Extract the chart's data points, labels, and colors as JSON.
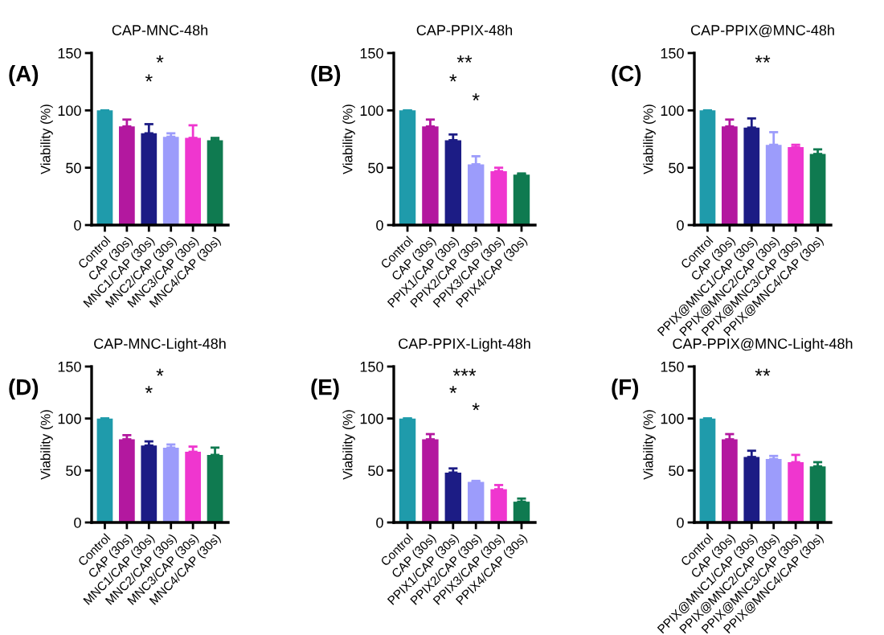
{
  "chart_data": [
    {
      "type": "bar",
      "title": "CAP-MNC-48h",
      "ylabel": "Viability (%)",
      "categories": [
        "Control",
        "CAP (30s)",
        "MNC1/CAP (30s)",
        "MNC2/CAP (30s)",
        "MNC3/CAP (30s)",
        "MNC4/CAP (30s)"
      ],
      "values": [
        100,
        86,
        80,
        77,
        76,
        74
      ],
      "errors": [
        [
          100,
          100
        ],
        [
          86,
          92
        ],
        [
          80,
          88
        ],
        [
          77,
          80
        ],
        [
          76,
          87
        ],
        [
          74,
          76
        ]
      ],
      "colors": [
        "#1f9bab",
        "#b3189f",
        "#1c1c85",
        "#9c9cfb",
        "#ef36cf",
        "#0f7a50"
      ],
      "ylim": [
        0,
        150
      ],
      "yticks": [
        0,
        50,
        100,
        150
      ],
      "annotations": [
        "(A)",
        "*",
        "*"
      ]
    },
    {
      "type": "bar",
      "title": "CAP-PPIX-48h",
      "ylabel": "Viability (%)",
      "categories": [
        "Control",
        "CAP (30s)",
        "PPIX1/CAP (30s)",
        "PPIX2/CAP (30s)",
        "PPIX3/CAP (30s)",
        "PPIX4/CAP (30s)"
      ],
      "values": [
        100,
        86,
        74,
        53,
        47,
        44
      ],
      "errors": [
        [
          100,
          100
        ],
        [
          86,
          92
        ],
        [
          74,
          79
        ],
        [
          53,
          60
        ],
        [
          47,
          50
        ],
        [
          44,
          45
        ]
      ],
      "colors": [
        "#1f9bab",
        "#b3189f",
        "#1c1c85",
        "#9c9cfb",
        "#ef36cf",
        "#0f7a50"
      ],
      "ylim": [
        0,
        150
      ],
      "yticks": [
        0,
        50,
        100,
        150
      ],
      "annotations": [
        "(B)",
        "**",
        "*",
        "*"
      ]
    },
    {
      "type": "bar",
      "title": "CAP-PPIX@MNC-48h",
      "ylabel": "Viability (%)",
      "categories": [
        "Control",
        "CAP (30s)",
        "PPIX@MNC1/CAP (30s)",
        "PPIX@MNC2/CAP (30s)",
        "PPIX@MNC3/CAP (30s)",
        "PPIX@MNC4/CAP (30s)"
      ],
      "values": [
        100,
        86,
        85,
        70,
        68,
        62
      ],
      "errors": [
        [
          100,
          100
        ],
        [
          86,
          92
        ],
        [
          85,
          93
        ],
        [
          70,
          81
        ],
        [
          68,
          70
        ],
        [
          62,
          66
        ]
      ],
      "colors": [
        "#1f9bab",
        "#b3189f",
        "#1c1c85",
        "#9c9cfb",
        "#ef36cf",
        "#0f7a50"
      ],
      "ylim": [
        0,
        150
      ],
      "yticks": [
        0,
        50,
        100,
        150
      ],
      "annotations": [
        "(C)",
        "**"
      ]
    },
    {
      "type": "bar",
      "title": "CAP-MNC-Light-48h",
      "ylabel": "Viability (%)",
      "categories": [
        "Control",
        "CAP (30s)",
        "MNC1/CAP (30s)",
        "MNC2/CAP (30s)",
        "MNC3/CAP (30s)",
        "MNC4/CAP (30s)"
      ],
      "values": [
        100,
        80,
        74,
        72,
        68,
        65
      ],
      "errors": [
        [
          100,
          100
        ],
        [
          80,
          84
        ],
        [
          74,
          78
        ],
        [
          72,
          75
        ],
        [
          68,
          73
        ],
        [
          65,
          72
        ]
      ],
      "colors": [
        "#1f9bab",
        "#b3189f",
        "#1c1c85",
        "#9c9cfb",
        "#ef36cf",
        "#0f7a50"
      ],
      "ylim": [
        0,
        150
      ],
      "yticks": [
        0,
        50,
        100,
        150
      ],
      "annotations": [
        "(D)",
        "*",
        "*"
      ]
    },
    {
      "type": "bar",
      "title": "CAP-PPIX-Light-48h",
      "ylabel": "Viability (%)",
      "categories": [
        "Control",
        "CAP (30s)",
        "PPIX1/CAP (30s)",
        "PPIX2/CAP (30s)",
        "PPIX3/CAP (30s)",
        "PPIX4/CAP (30s)"
      ],
      "values": [
        100,
        80,
        48,
        39,
        32,
        20
      ],
      "errors": [
        [
          100,
          100
        ],
        [
          80,
          85
        ],
        [
          48,
          52
        ],
        [
          39,
          40
        ],
        [
          32,
          36
        ],
        [
          20,
          23
        ]
      ],
      "colors": [
        "#1f9bab",
        "#b3189f",
        "#1c1c85",
        "#9c9cfb",
        "#ef36cf",
        "#0f7a50"
      ],
      "ylim": [
        0,
        150
      ],
      "yticks": [
        0,
        50,
        100,
        150
      ],
      "annotations": [
        "(E)",
        "***",
        "*",
        "*"
      ]
    },
    {
      "type": "bar",
      "title": "CAP-PPIX@MNC-Light-48h",
      "ylabel": "Viability (%)",
      "categories": [
        "Control",
        "CAP (30s)",
        "PPIX@MNC1/CAP (30s)",
        "PPIX@MNC2/CAP (30s)",
        "PPIX@MNC3/CAP (30s)",
        "PPIX@MNC4/CAP (30s)"
      ],
      "values": [
        100,
        80,
        63,
        61,
        58,
        54
      ],
      "errors": [
        [
          100,
          100
        ],
        [
          80,
          85
        ],
        [
          63,
          69
        ],
        [
          61,
          64
        ],
        [
          58,
          65
        ],
        [
          54,
          58
        ]
      ],
      "colors": [
        "#1f9bab",
        "#b3189f",
        "#1c1c85",
        "#9c9cfb",
        "#ef36cf",
        "#0f7a50"
      ],
      "ylim": [
        0,
        150
      ],
      "yticks": [
        0,
        50,
        100,
        150
      ],
      "annotations": [
        "(F)",
        "**"
      ]
    }
  ]
}
